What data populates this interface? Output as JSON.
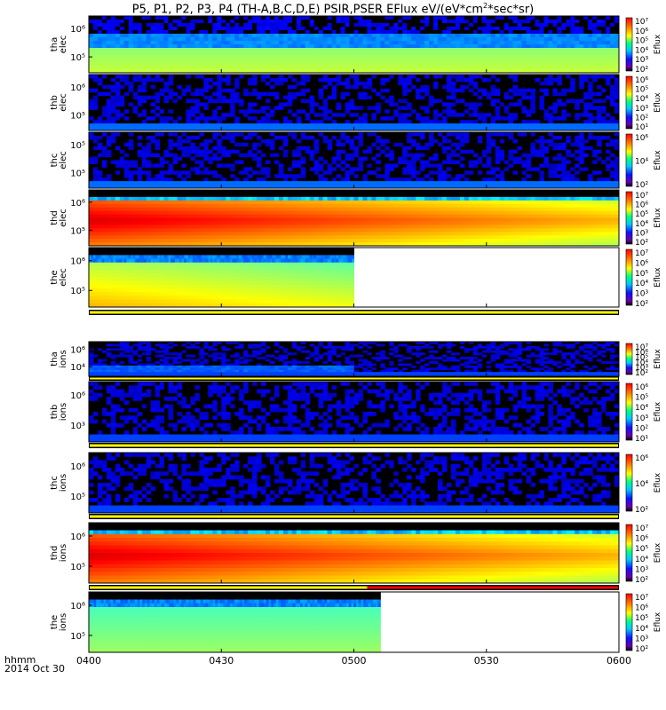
{
  "title": "P5, P1, P2, P3, P4 (TH-A,B,C,D,E) PSIR,PSER EFlux eV/(eV*cm",
  "title_sup": "2",
  "title_tail": "*sec*sr)",
  "footer": {
    "unit_label": "hhmm",
    "date_label": "2014 Oct 30"
  },
  "colors": {
    "flag_yellow": "#ffff00",
    "flag_red": "#ff0000",
    "background": "#000000"
  },
  "chart_data": {
    "type": "heatmap",
    "x_ticks": [
      "0400",
      "0430",
      "0500",
      "0530",
      "0600"
    ],
    "x_range": [
      "04:00",
      "06:00"
    ],
    "colorbar_unit": "Eflux",
    "panels": [
      {
        "probe": "tha",
        "species": "elec",
        "y_ticks": [
          "10⁶",
          "10⁵"
        ],
        "cbar_ticks": [
          "10⁷",
          "10⁶",
          "10⁵",
          "10⁴",
          "10³",
          "10²"
        ],
        "data_end": "06:00",
        "flag": "none"
      },
      {
        "probe": "thb",
        "species": "elec",
        "y_ticks": [
          "10⁶",
          "10⁵"
        ],
        "cbar_ticks": [
          "10⁶",
          "10⁵",
          "10⁴",
          "10³",
          "10²",
          "10¹"
        ],
        "data_end": "06:00",
        "flag": "none"
      },
      {
        "probe": "thc",
        "species": "elec",
        "y_ticks": [
          "10⁵",
          "10⁵"
        ],
        "cbar_ticks": [
          "10⁶",
          "10⁴",
          "10²"
        ],
        "data_end": "06:00",
        "flag": "none"
      },
      {
        "probe": "thd",
        "species": "elec",
        "y_ticks": [
          "10⁶",
          "10⁵"
        ],
        "cbar_ticks": [
          "10⁷",
          "10⁶",
          "10⁵",
          "10⁴",
          "10³",
          "10²"
        ],
        "data_end": "06:00",
        "flag": "none"
      },
      {
        "probe": "the",
        "species": "elec",
        "y_ticks": [
          "10⁶",
          "10⁵"
        ],
        "cbar_ticks": [
          "10⁷",
          "10⁶",
          "10⁵",
          "10⁴",
          "10³",
          "10²"
        ],
        "data_end": "05:00",
        "flag": "yellow"
      },
      {
        "probe": "tha",
        "species": "ions",
        "y_ticks": [
          "10⁶",
          "10⁴"
        ],
        "cbar_ticks": [
          "10⁷",
          "10⁶",
          "10⁵",
          "10⁴",
          "10³",
          "10²"
        ],
        "data_end": "06:00",
        "flag": "yellow"
      },
      {
        "probe": "thb",
        "species": "ions",
        "y_ticks": [
          "10⁶",
          "10³"
        ],
        "cbar_ticks": [
          "10⁶",
          "10⁵",
          "10⁴",
          "10³",
          "10²",
          "10¹"
        ],
        "data_end": "06:00",
        "flag": "yellow"
      },
      {
        "probe": "thc",
        "species": "ions",
        "y_ticks": [
          "10⁶",
          "10⁵"
        ],
        "cbar_ticks": [
          "10⁶",
          "10⁴",
          "10²"
        ],
        "data_end": "06:00",
        "flag": "yellow"
      },
      {
        "probe": "thd",
        "species": "ions",
        "y_ticks": [
          "10⁶",
          "10⁵"
        ],
        "cbar_ticks": [
          "10⁷",
          "10⁶",
          "10⁵",
          "10⁴",
          "10³",
          "10²"
        ],
        "data_end": "06:00",
        "flag": "yellow-red"
      },
      {
        "probe": "the",
        "species": "ions",
        "y_ticks": [
          "10⁶",
          "10⁵"
        ],
        "cbar_ticks": [
          "10⁷",
          "10⁶",
          "10⁵",
          "10⁴",
          "10³",
          "10²"
        ],
        "data_end": "05:06",
        "flag": "none"
      }
    ]
  }
}
